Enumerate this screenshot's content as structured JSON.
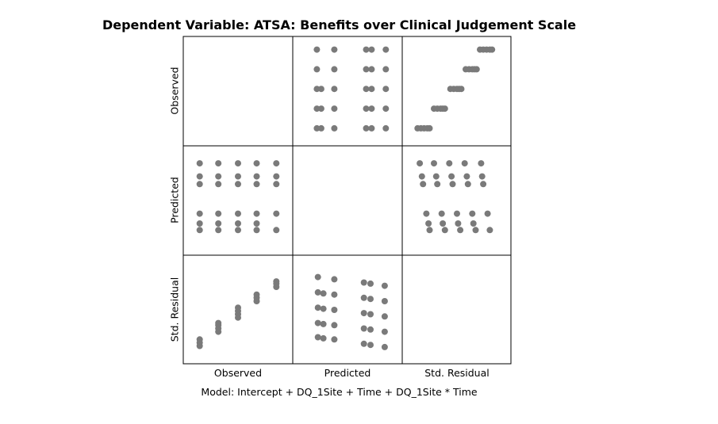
{
  "title": "Dependent Variable: ATSA: Benefits over Clinical Judgement Scale",
  "footnote": "Model: Intercept + DQ_1Site + Time + DQ_1Site * Time",
  "chart_data": {
    "type": "scatter",
    "variables": [
      "Observed",
      "Predicted",
      "Std. Residual"
    ],
    "point_color": "#7a7a7a",
    "grid": false,
    "panels": [
      {
        "row": "Observed",
        "col": "Predicted",
        "xlim": [
          0,
          1
        ],
        "ylim": [
          0,
          1
        ],
        "points": [
          [
            0.22,
            0.88
          ],
          [
            0.38,
            0.88
          ],
          [
            0.67,
            0.88
          ],
          [
            0.72,
            0.88
          ],
          [
            0.85,
            0.88
          ],
          [
            0.22,
            0.7
          ],
          [
            0.38,
            0.7
          ],
          [
            0.67,
            0.7
          ],
          [
            0.72,
            0.7
          ],
          [
            0.85,
            0.7
          ],
          [
            0.22,
            0.52
          ],
          [
            0.26,
            0.52
          ],
          [
            0.38,
            0.52
          ],
          [
            0.67,
            0.52
          ],
          [
            0.72,
            0.52
          ],
          [
            0.85,
            0.52
          ],
          [
            0.22,
            0.34
          ],
          [
            0.26,
            0.34
          ],
          [
            0.38,
            0.34
          ],
          [
            0.67,
            0.34
          ],
          [
            0.72,
            0.34
          ],
          [
            0.85,
            0.34
          ],
          [
            0.22,
            0.16
          ],
          [
            0.26,
            0.16
          ],
          [
            0.38,
            0.16
          ],
          [
            0.67,
            0.16
          ],
          [
            0.72,
            0.16
          ],
          [
            0.85,
            0.16
          ]
        ]
      },
      {
        "row": "Observed",
        "col": "Std. Residual",
        "xlim": [
          0,
          1
        ],
        "ylim": [
          0,
          1
        ],
        "points": [
          [
            0.14,
            0.16
          ],
          [
            0.17,
            0.16
          ],
          [
            0.2,
            0.16
          ],
          [
            0.23,
            0.16
          ],
          [
            0.25,
            0.16
          ],
          [
            0.29,
            0.34
          ],
          [
            0.32,
            0.34
          ],
          [
            0.35,
            0.34
          ],
          [
            0.37,
            0.34
          ],
          [
            0.39,
            0.34
          ],
          [
            0.44,
            0.52
          ],
          [
            0.47,
            0.52
          ],
          [
            0.5,
            0.52
          ],
          [
            0.52,
            0.52
          ],
          [
            0.54,
            0.52
          ],
          [
            0.58,
            0.7
          ],
          [
            0.61,
            0.7
          ],
          [
            0.64,
            0.7
          ],
          [
            0.66,
            0.7
          ],
          [
            0.68,
            0.7
          ],
          [
            0.71,
            0.88
          ],
          [
            0.74,
            0.88
          ],
          [
            0.77,
            0.88
          ],
          [
            0.8,
            0.88
          ],
          [
            0.82,
            0.88
          ]
        ]
      },
      {
        "row": "Predicted",
        "col": "Observed",
        "xlim": [
          0,
          1
        ],
        "ylim": [
          0,
          1
        ],
        "points": [
          [
            0.15,
            0.84
          ],
          [
            0.32,
            0.84
          ],
          [
            0.5,
            0.84
          ],
          [
            0.67,
            0.84
          ],
          [
            0.85,
            0.84
          ],
          [
            0.15,
            0.72
          ],
          [
            0.32,
            0.72
          ],
          [
            0.5,
            0.72
          ],
          [
            0.67,
            0.72
          ],
          [
            0.85,
            0.72
          ],
          [
            0.15,
            0.65
          ],
          [
            0.32,
            0.65
          ],
          [
            0.5,
            0.65
          ],
          [
            0.67,
            0.65
          ],
          [
            0.85,
            0.65
          ],
          [
            0.15,
            0.38
          ],
          [
            0.32,
            0.38
          ],
          [
            0.5,
            0.38
          ],
          [
            0.67,
            0.38
          ],
          [
            0.85,
            0.38
          ],
          [
            0.15,
            0.29
          ],
          [
            0.32,
            0.29
          ],
          [
            0.5,
            0.29
          ],
          [
            0.67,
            0.29
          ],
          [
            0.15,
            0.23
          ],
          [
            0.32,
            0.23
          ],
          [
            0.5,
            0.23
          ],
          [
            0.67,
            0.23
          ],
          [
            0.85,
            0.23
          ]
        ]
      },
      {
        "row": "Predicted",
        "col": "Std. Residual",
        "xlim": [
          0,
          1
        ],
        "ylim": [
          0,
          1
        ],
        "points": [
          [
            0.16,
            0.84
          ],
          [
            0.29,
            0.84
          ],
          [
            0.43,
            0.84
          ],
          [
            0.57,
            0.84
          ],
          [
            0.72,
            0.84
          ],
          [
            0.18,
            0.72
          ],
          [
            0.31,
            0.72
          ],
          [
            0.45,
            0.72
          ],
          [
            0.59,
            0.72
          ],
          [
            0.73,
            0.72
          ],
          [
            0.19,
            0.65
          ],
          [
            0.32,
            0.65
          ],
          [
            0.46,
            0.65
          ],
          [
            0.6,
            0.65
          ],
          [
            0.74,
            0.65
          ],
          [
            0.22,
            0.38
          ],
          [
            0.36,
            0.38
          ],
          [
            0.5,
            0.38
          ],
          [
            0.64,
            0.38
          ],
          [
            0.78,
            0.38
          ],
          [
            0.24,
            0.29
          ],
          [
            0.37,
            0.29
          ],
          [
            0.51,
            0.29
          ],
          [
            0.65,
            0.29
          ],
          [
            0.25,
            0.23
          ],
          [
            0.39,
            0.23
          ],
          [
            0.53,
            0.23
          ],
          [
            0.67,
            0.23
          ],
          [
            0.8,
            0.23
          ]
        ]
      },
      {
        "row": "Std. Residual",
        "col": "Observed",
        "xlim": [
          0,
          1
        ],
        "ylim": [
          0,
          1
        ],
        "points": [
          [
            0.15,
            0.17
          ],
          [
            0.15,
            0.2
          ],
          [
            0.15,
            0.23
          ],
          [
            0.32,
            0.3
          ],
          [
            0.32,
            0.33
          ],
          [
            0.32,
            0.36
          ],
          [
            0.32,
            0.38
          ],
          [
            0.5,
            0.43
          ],
          [
            0.5,
            0.46
          ],
          [
            0.5,
            0.49
          ],
          [
            0.5,
            0.52
          ],
          [
            0.67,
            0.58
          ],
          [
            0.67,
            0.61
          ],
          [
            0.67,
            0.64
          ],
          [
            0.85,
            0.71
          ],
          [
            0.85,
            0.74
          ],
          [
            0.85,
            0.76
          ]
        ]
      },
      {
        "row": "Std. Residual",
        "col": "Predicted",
        "xlim": [
          0,
          1
        ],
        "ylim": [
          0,
          1
        ],
        "points": [
          [
            0.23,
            0.8
          ],
          [
            0.38,
            0.78
          ],
          [
            0.23,
            0.66
          ],
          [
            0.28,
            0.65
          ],
          [
            0.38,
            0.64
          ],
          [
            0.23,
            0.52
          ],
          [
            0.28,
            0.51
          ],
          [
            0.38,
            0.5
          ],
          [
            0.23,
            0.38
          ],
          [
            0.28,
            0.37
          ],
          [
            0.38,
            0.36
          ],
          [
            0.23,
            0.25
          ],
          [
            0.28,
            0.24
          ],
          [
            0.38,
            0.23
          ],
          [
            0.65,
            0.75
          ],
          [
            0.71,
            0.74
          ],
          [
            0.84,
            0.72
          ],
          [
            0.65,
            0.61
          ],
          [
            0.71,
            0.6
          ],
          [
            0.84,
            0.58
          ],
          [
            0.65,
            0.47
          ],
          [
            0.71,
            0.46
          ],
          [
            0.84,
            0.44
          ],
          [
            0.65,
            0.33
          ],
          [
            0.71,
            0.32
          ],
          [
            0.84,
            0.3
          ],
          [
            0.65,
            0.19
          ],
          [
            0.71,
            0.18
          ],
          [
            0.84,
            0.16
          ]
        ]
      }
    ]
  }
}
